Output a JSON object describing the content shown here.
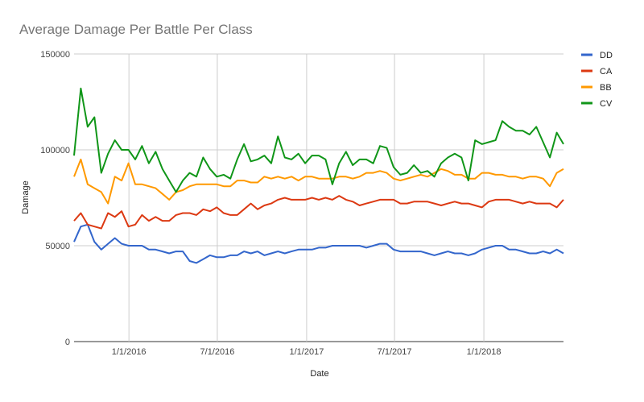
{
  "chart_data": {
    "type": "line",
    "title": "Average Damage Per Battle Per Class",
    "xlabel": "Date",
    "ylabel": "Damage",
    "ylim": [
      0,
      150000
    ],
    "yticks": [
      0,
      50000,
      100000,
      150000
    ],
    "ytick_labels": [
      "0",
      "50000",
      "100000",
      "150000"
    ],
    "xlim": [
      "2015-09-10",
      "2018-06-14"
    ],
    "xticks": [
      "2016-01-01",
      "2016-07-01",
      "2017-01-01",
      "2017-07-01",
      "2018-01-01"
    ],
    "xtick_labels": [
      "1/1/2016",
      "7/1/2016",
      "1/1/2017",
      "7/1/2017",
      "1/1/2018"
    ],
    "grid": true,
    "legend_position": "right",
    "x": [
      "2015-09-10",
      "2015-09-24",
      "2015-10-08",
      "2015-10-22",
      "2015-11-05",
      "2015-11-19",
      "2015-12-03",
      "2015-12-17",
      "2015-12-31",
      "2016-01-14",
      "2016-01-28",
      "2016-02-11",
      "2016-02-25",
      "2016-03-10",
      "2016-03-24",
      "2016-04-07",
      "2016-04-21",
      "2016-05-05",
      "2016-05-19",
      "2016-06-02",
      "2016-06-16",
      "2016-06-30",
      "2016-07-14",
      "2016-07-28",
      "2016-08-11",
      "2016-08-25",
      "2016-09-08",
      "2016-09-22",
      "2016-10-06",
      "2016-10-20",
      "2016-11-03",
      "2016-11-17",
      "2016-12-01",
      "2016-12-15",
      "2016-12-29",
      "2017-01-12",
      "2017-01-26",
      "2017-02-09",
      "2017-02-23",
      "2017-03-09",
      "2017-03-23",
      "2017-04-06",
      "2017-04-20",
      "2017-05-04",
      "2017-05-18",
      "2017-06-01",
      "2017-06-15",
      "2017-06-29",
      "2017-07-13",
      "2017-07-27",
      "2017-08-10",
      "2017-08-24",
      "2017-09-07",
      "2017-09-21",
      "2017-10-05",
      "2017-10-19",
      "2017-11-02",
      "2017-11-16",
      "2017-11-30",
      "2017-12-14",
      "2017-12-28",
      "2018-01-11",
      "2018-01-25",
      "2018-02-08",
      "2018-02-22",
      "2018-03-08",
      "2018-03-22",
      "2018-04-05",
      "2018-04-19",
      "2018-05-03",
      "2018-05-17",
      "2018-05-31",
      "2018-06-14"
    ],
    "series": [
      {
        "name": "DD",
        "color": "#3366cc",
        "values": [
          52000,
          60000,
          61000,
          52000,
          48000,
          51000,
          54000,
          51000,
          50000,
          50000,
          50000,
          48000,
          48000,
          47000,
          46000,
          47000,
          47000,
          42000,
          41000,
          43000,
          45000,
          44000,
          44000,
          45000,
          45000,
          47000,
          46000,
          47000,
          45000,
          46000,
          47000,
          46000,
          47000,
          48000,
          48000,
          48000,
          49000,
          49000,
          50000,
          50000,
          50000,
          50000,
          50000,
          49000,
          50000,
          51000,
          51000,
          48000,
          47000,
          47000,
          47000,
          47000,
          46000,
          45000,
          46000,
          47000,
          46000,
          46000,
          45000,
          46000,
          48000,
          49000,
          50000,
          50000,
          48000,
          48000,
          47000,
          46000,
          46000,
          47000,
          46000,
          48000,
          46000
        ]
      },
      {
        "name": "CA",
        "color": "#dc3912",
        "values": [
          63000,
          67000,
          61000,
          60000,
          59000,
          67000,
          65000,
          68000,
          60000,
          61000,
          66000,
          63000,
          65000,
          63000,
          63000,
          66000,
          67000,
          67000,
          66000,
          69000,
          68000,
          70000,
          67000,
          66000,
          66000,
          69000,
          72000,
          69000,
          71000,
          72000,
          74000,
          75000,
          74000,
          74000,
          74000,
          75000,
          74000,
          75000,
          74000,
          76000,
          74000,
          73000,
          71000,
          72000,
          73000,
          74000,
          74000,
          74000,
          72000,
          72000,
          73000,
          73000,
          73000,
          72000,
          71000,
          72000,
          73000,
          72000,
          72000,
          71000,
          70000,
          73000,
          74000,
          74000,
          74000,
          73000,
          72000,
          73000,
          72000,
          72000,
          72000,
          70000,
          74000
        ]
      },
      {
        "name": "BB",
        "color": "#ff9900",
        "values": [
          86000,
          95000,
          82000,
          80000,
          78000,
          72000,
          86000,
          84000,
          93000,
          82000,
          82000,
          81000,
          80000,
          77000,
          74000,
          78000,
          79000,
          81000,
          82000,
          82000,
          82000,
          82000,
          81000,
          81000,
          84000,
          84000,
          83000,
          83000,
          86000,
          85000,
          86000,
          85000,
          86000,
          84000,
          86000,
          86000,
          85000,
          85000,
          85000,
          86000,
          86000,
          85000,
          86000,
          88000,
          88000,
          89000,
          88000,
          85000,
          84000,
          85000,
          86000,
          87000,
          86000,
          88000,
          90000,
          89000,
          87000,
          87000,
          85000,
          85000,
          88000,
          88000,
          87000,
          87000,
          86000,
          86000,
          85000,
          86000,
          86000,
          85000,
          81000,
          88000,
          90000
        ]
      },
      {
        "name": "CV",
        "color": "#109618",
        "values": [
          97000,
          132000,
          112000,
          117000,
          88000,
          98000,
          105000,
          100000,
          100000,
          95000,
          102000,
          93000,
          99000,
          90000,
          84000,
          78000,
          84000,
          88000,
          86000,
          96000,
          90000,
          86000,
          87000,
          85000,
          95000,
          103000,
          94000,
          95000,
          97000,
          93000,
          107000,
          96000,
          95000,
          98000,
          93000,
          97000,
          97000,
          95000,
          82000,
          93000,
          99000,
          92000,
          95000,
          95000,
          93000,
          102000,
          101000,
          91000,
          87000,
          88000,
          92000,
          88000,
          89000,
          86000,
          93000,
          96000,
          98000,
          96000,
          84000,
          105000,
          103000,
          104000,
          105000,
          115000,
          112000,
          110000,
          110000,
          108000,
          112000,
          104000,
          96000,
          109000,
          103000
        ]
      }
    ]
  }
}
